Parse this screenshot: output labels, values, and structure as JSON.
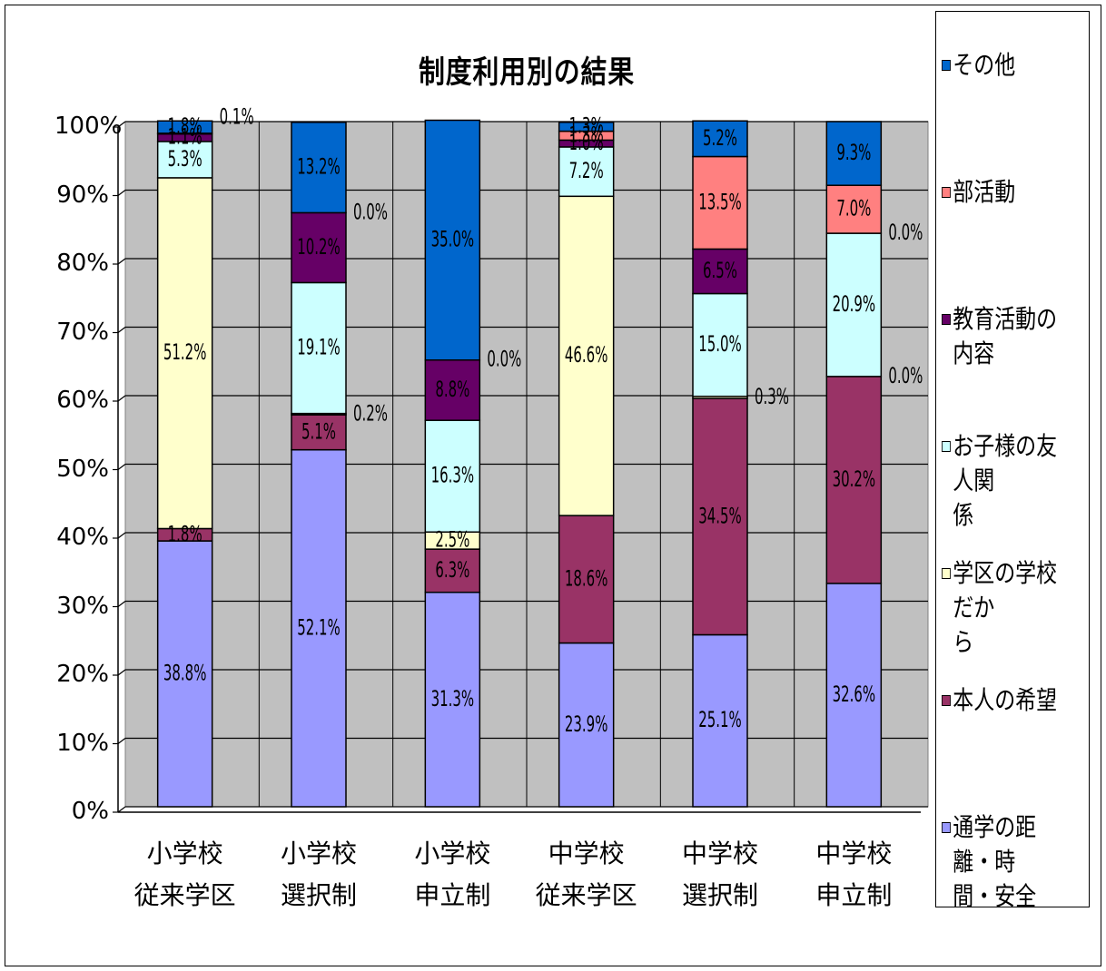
{
  "chart_data": {
    "type": "bar",
    "stacked": true,
    "normalized": true,
    "title": "制度利用別の結果",
    "yticks": [
      "0%",
      "10%",
      "20%",
      "30%",
      "40%",
      "50%",
      "60%",
      "70%",
      "80%",
      "90%",
      "100%"
    ],
    "ylim": [
      0,
      100
    ],
    "grid": true,
    "legend_position": "right",
    "categories": [
      [
        "小学校",
        "従来学区"
      ],
      [
        "小学校",
        "選択制"
      ],
      [
        "小学校",
        "申立制"
      ],
      [
        "中学校",
        "従来学区"
      ],
      [
        "中学校",
        "選択制"
      ],
      [
        "中学校",
        "申立制"
      ]
    ],
    "series": [
      {
        "name": "通学の距離・時間・安全",
        "color": "#9999ff",
        "values": [
          38.8,
          52.1,
          31.3,
          23.9,
          25.1,
          32.6
        ],
        "labels": [
          "38.8%",
          "52.1%",
          "31.3%",
          "23.9%",
          "25.1%",
          "32.6%"
        ]
      },
      {
        "name": "本人の希望",
        "color": "#993366",
        "values": [
          1.8,
          5.1,
          6.3,
          18.6,
          34.5,
          30.2
        ],
        "labels": [
          "1.8%",
          "5.1%",
          "6.3%",
          "18.6%",
          "34.5%",
          "30.2%"
        ]
      },
      {
        "name": "学区の学校だから",
        "color": "#ffffcc",
        "values": [
          51.2,
          0.2,
          2.5,
          46.6,
          0.3,
          0.0
        ],
        "labels": [
          "51.2%",
          "0.2%",
          "2.5%",
          "46.6%",
          "0.3%",
          "0.0%"
        ]
      },
      {
        "name": "お子様の友人関係",
        "color": "#ccffff",
        "values": [
          5.3,
          19.1,
          16.3,
          7.2,
          15.0,
          20.9
        ],
        "labels": [
          "5.3%",
          "19.1%",
          "16.3%",
          "7.2%",
          "15.0%",
          "20.9%"
        ]
      },
      {
        "name": "教育活動の内容",
        "color": "#660066",
        "values": [
          1.1,
          10.2,
          8.8,
          1.0,
          6.5,
          0.0
        ],
        "labels": [
          "1.1%",
          "10.2%",
          "8.8%",
          "1.0%",
          "6.5%",
          "0.0%"
        ]
      },
      {
        "name": "部活動",
        "color": "#ff8080",
        "values": [
          0.1,
          0.0,
          0.0,
          1.3,
          13.5,
          7.0
        ],
        "labels": [
          "0.1%",
          "0.0%",
          "0.0%",
          "1.3%",
          "13.5%",
          "7.0%"
        ]
      },
      {
        "name": "その他",
        "color": "#0066cc",
        "values": [
          1.8,
          13.2,
          35.0,
          1.3,
          5.2,
          9.3
        ],
        "labels": [
          "1.8%",
          "13.2%",
          "35.0%",
          "1.3%",
          "5.2%",
          "9.3%"
        ]
      }
    ]
  },
  "legend_labels": {
    "other": "その他",
    "club": "部活動",
    "education": "教育活動の内容",
    "friends": "お子様の友人関係",
    "district": "学区の学校だから",
    "wish": "本人の希望",
    "commute": "通学の距離・時間・安全"
  },
  "legend_label_display": {
    "friends": [
      "お子様の友人関",
      "係"
    ],
    "district": [
      "学区の学校だか",
      "ら"
    ],
    "commute": [
      "通学の距離・時",
      "間・安全"
    ]
  }
}
